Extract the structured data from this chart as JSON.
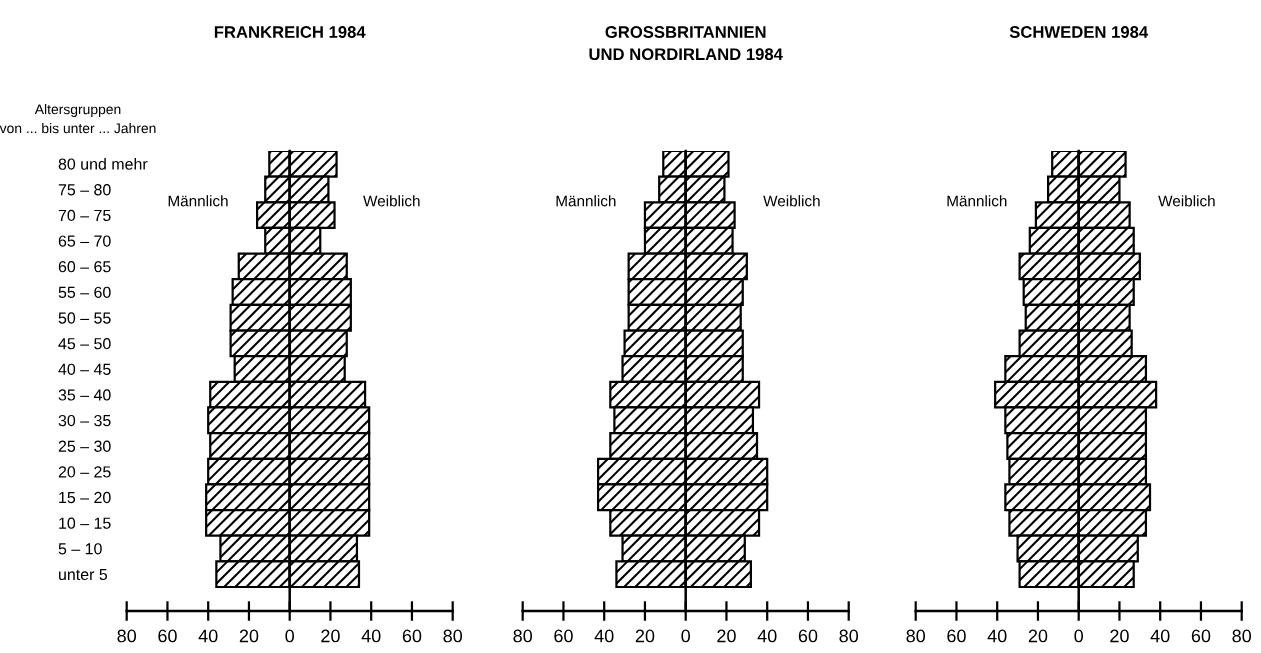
{
  "chart_data": [
    {
      "type": "bar",
      "orientation": "horizontal",
      "stacked": true,
      "title": "FRANKREICH 1984",
      "ylabel": "Altersgruppen\nvon ... bis unter ... Jahren",
      "categories": [
        "80 und mehr",
        "75 – 80",
        "70 – 75",
        "65 – 70",
        "60 – 65",
        "55 – 60",
        "50 – 55",
        "45 – 50",
        "40 – 45",
        "35 – 40",
        "30 – 35",
        "25 – 30",
        "20 – 25",
        "15 – 20",
        "10 – 15",
        "5 – 10",
        "unter 5"
      ],
      "series": [
        {
          "name": "Männlich",
          "color": "#000000",
          "values": [
            -10,
            -12,
            -16,
            -12,
            -25,
            -28,
            -29,
            -29,
            -27,
            -39,
            -40,
            -39,
            -40,
            -41,
            -41,
            -34,
            -36
          ]
        },
        {
          "name": "Weiblich",
          "color": "#000000",
          "values": [
            23,
            19,
            22,
            15,
            28,
            30,
            30,
            28,
            27,
            37,
            39,
            39,
            39,
            39,
            39,
            33,
            34
          ]
        }
      ],
      "xlim": [
        -80,
        80
      ],
      "xticks": [
        {
          "value": -80,
          "label": "80"
        },
        {
          "value": -60,
          "label": "60"
        },
        {
          "value": -40,
          "label": "40"
        },
        {
          "value": -20,
          "label": "20"
        },
        0,
        20,
        40,
        60,
        80
      ]
    },
    {
      "type": "bar",
      "orientation": "horizontal",
      "stacked": true,
      "title": "GROSSBRITANNIEN\nUND NORDIRLAND 1984",
      "categories": [
        null,
        null,
        null,
        null,
        null,
        null,
        null,
        null,
        null,
        null,
        null,
        null,
        null,
        null,
        null,
        null,
        null
      ],
      "series": [
        {
          "name": "Männlich",
          "color": "#000000",
          "values": [
            -11,
            -13,
            -20,
            -20,
            -28,
            -28,
            -28,
            -30,
            -31,
            -37,
            -35,
            -37,
            -43,
            -43,
            -37,
            -31,
            -34
          ]
        },
        {
          "name": "Weiblich",
          "color": "#000000",
          "values": [
            21,
            19,
            24,
            23,
            30,
            28,
            27,
            28,
            28,
            36,
            33,
            35,
            40,
            40,
            36,
            29,
            32
          ]
        }
      ],
      "xlim": [
        -80,
        80
      ],
      "xticks": [
        {
          "value": -80,
          "label": "80"
        },
        {
          "value": -60,
          "label": "60"
        },
        {
          "value": -40,
          "label": "40"
        },
        {
          "value": -20,
          "label": "20"
        },
        0,
        20,
        40,
        60,
        80
      ]
    },
    {
      "type": "bar",
      "orientation": "horizontal",
      "stacked": true,
      "title": "SCHWEDEN 1984",
      "categories": [
        null,
        null,
        null,
        null,
        null,
        null,
        null,
        null,
        null,
        null,
        null,
        null,
        null,
        null,
        null,
        null,
        null
      ],
      "series": [
        {
          "name": "Männlich",
          "color": "#000000",
          "values": [
            -13,
            -15,
            -21,
            -24,
            -29,
            -27,
            -26,
            -29,
            -36,
            -41,
            -36,
            -35,
            -34,
            -36,
            -34,
            -30,
            -29
          ]
        },
        {
          "name": "Weiblich",
          "color": "#000000",
          "values": [
            23,
            20,
            25,
            27,
            30,
            27,
            25,
            26,
            33,
            38,
            33,
            33,
            33,
            35,
            33,
            29,
            27
          ]
        }
      ],
      "xlim": [
        -80,
        80
      ],
      "xticks": [
        {
          "value": -80,
          "label": "80"
        },
        {
          "value": -60,
          "label": "60"
        },
        {
          "value": -40,
          "label": "40"
        },
        {
          "value": -20,
          "label": "20"
        },
        0,
        20,
        40,
        60,
        80
      ]
    }
  ]
}
